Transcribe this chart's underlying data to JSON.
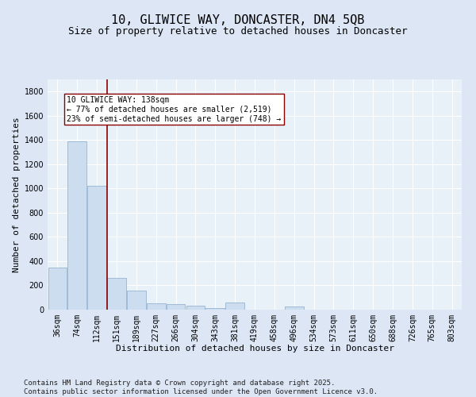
{
  "title": "10, GLIWICE WAY, DONCASTER, DN4 5QB",
  "subtitle": "Size of property relative to detached houses in Doncaster",
  "xlabel": "Distribution of detached houses by size in Doncaster",
  "ylabel": "Number of detached properties",
  "categories": [
    "36sqm",
    "74sqm",
    "112sqm",
    "151sqm",
    "189sqm",
    "227sqm",
    "266sqm",
    "304sqm",
    "343sqm",
    "381sqm",
    "419sqm",
    "458sqm",
    "496sqm",
    "534sqm",
    "573sqm",
    "611sqm",
    "650sqm",
    "688sqm",
    "726sqm",
    "765sqm",
    "803sqm"
  ],
  "values": [
    350,
    1390,
    1020,
    260,
    155,
    55,
    45,
    35,
    15,
    60,
    0,
    0,
    25,
    0,
    0,
    0,
    0,
    0,
    0,
    0,
    0
  ],
  "bar_color": "#ccddf0",
  "bar_edge_color": "#88aacc",
  "vline_x_index": 2.5,
  "vline_color": "#8b0000",
  "annotation_text": "10 GLIWICE WAY: 138sqm\n← 77% of detached houses are smaller (2,519)\n23% of semi-detached houses are larger (748) →",
  "annotation_box_facecolor": "#ffffff",
  "annotation_box_edgecolor": "#8b0000",
  "ylim": [
    0,
    1900
  ],
  "yticks": [
    0,
    200,
    400,
    600,
    800,
    1000,
    1200,
    1400,
    1600,
    1800
  ],
  "bg_color": "#dce6f5",
  "plot_bg_color": "#e8f0f8",
  "footer": "Contains HM Land Registry data © Crown copyright and database right 2025.\nContains public sector information licensed under the Open Government Licence v3.0.",
  "title_fontsize": 11,
  "subtitle_fontsize": 9,
  "axis_label_fontsize": 8,
  "tick_fontsize": 7,
  "annotation_fontsize": 7,
  "footer_fontsize": 6.5
}
